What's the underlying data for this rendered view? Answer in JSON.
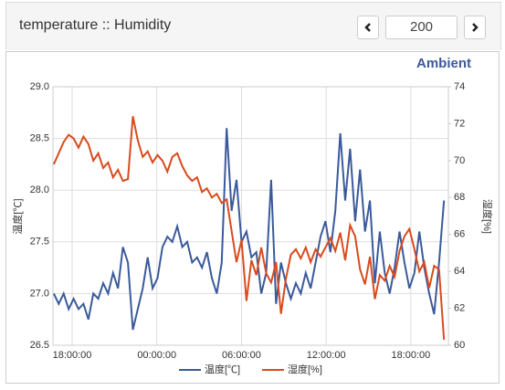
{
  "header": {
    "title": "temperature :: Humidity",
    "count": "200"
  },
  "chart_data": {
    "type": "line",
    "title": "Ambient",
    "ylabel": "温度[℃]",
    "y2label": "湿度[%]",
    "x": [
      16.7,
      17.05,
      17.4,
      17.75,
      18.1,
      18.45,
      18.8,
      19.15,
      19.5,
      19.85,
      20.2,
      20.55,
      20.9,
      21.25,
      21.6,
      21.95,
      22.3,
      22.65,
      23,
      23.35,
      23.7,
      24.05,
      24.4,
      24.75,
      25.1,
      25.45,
      25.8,
      26.15,
      26.5,
      26.85,
      27.2,
      27.55,
      27.9,
      28.25,
      28.6,
      28.95,
      29.3,
      29.65,
      30,
      30.35,
      30.7,
      31.05,
      31.4,
      31.75,
      32.1,
      32.45,
      32.8,
      33.15,
      33.5,
      33.85,
      34.2,
      34.55,
      34.9,
      35.25,
      35.6,
      35.95,
      36.3,
      36.65,
      37,
      37.35,
      37.7,
      38.05,
      38.4,
      38.75,
      39.1,
      39.45,
      39.8,
      40.15,
      40.5,
      40.85,
      41.2,
      41.55,
      41.9,
      42.25,
      42.6,
      42.95,
      43.3,
      43.65,
      44,
      44.35
    ],
    "series": [
      {
        "name": "温度[℃]",
        "color": "#3a5a9b",
        "axis": "y",
        "values": [
          27.0,
          26.9,
          27.0,
          26.85,
          26.95,
          26.85,
          26.9,
          26.75,
          27.0,
          26.95,
          27.1,
          27.0,
          27.2,
          27.05,
          27.45,
          27.3,
          26.65,
          26.85,
          27.05,
          27.35,
          27.05,
          27.15,
          27.45,
          27.55,
          27.5,
          27.65,
          27.45,
          27.5,
          27.3,
          27.35,
          27.25,
          27.4,
          27.15,
          27.0,
          27.3,
          28.6,
          27.8,
          28.1,
          27.5,
          27.6,
          27.35,
          27.4,
          27.0,
          27.2,
          28.1,
          26.9,
          27.3,
          27.1,
          26.95,
          27.1,
          27.0,
          27.2,
          27.05,
          27.3,
          27.55,
          27.7,
          27.4,
          27.8,
          28.55,
          27.9,
          28.4,
          27.7,
          28.2,
          27.6,
          27.9,
          27.1,
          27.6,
          27.2,
          27.0,
          27.25,
          27.6,
          27.3,
          27.05,
          27.2,
          27.6,
          27.25,
          27.0,
          26.8,
          27.3,
          27.9
        ]
      },
      {
        "name": "湿度[%]",
        "color": "#d94b1e",
        "axis": "y2",
        "values": [
          69.8,
          70.4,
          71.0,
          71.4,
          71.2,
          70.7,
          71.3,
          70.9,
          70.0,
          70.4,
          69.6,
          69.9,
          69.1,
          69.5,
          68.9,
          69.0,
          72.4,
          71.1,
          70.2,
          70.5,
          69.9,
          70.3,
          70.0,
          69.4,
          70.2,
          70.4,
          69.7,
          69.2,
          68.9,
          69.1,
          68.3,
          68.5,
          68.0,
          68.2,
          67.7,
          67.9,
          66.2,
          64.5,
          65.7,
          62.4,
          64.6,
          63.8,
          65.3,
          63.9,
          63.4,
          64.5,
          61.7,
          63.6,
          64.9,
          65.2,
          64.7,
          65.3,
          64.5,
          65.2,
          64.8,
          65.3,
          65.8,
          65.1,
          66.1,
          64.6,
          66.5,
          65.9,
          64.1,
          63.3,
          64.8,
          62.5,
          63.8,
          63.5,
          64.3,
          63.7,
          65.1,
          65.9,
          66.3,
          65.2,
          64.0,
          64.5,
          63.1,
          64.3,
          64.1,
          60.3
        ]
      }
    ],
    "xlim": [
      16.64,
      44.66
    ],
    "xticks": [
      {
        "value": 18,
        "label": "18:00:00"
      },
      {
        "value": 24,
        "label": "00:00:00"
      },
      {
        "value": 30,
        "label": "06:00:00"
      },
      {
        "value": 36,
        "label": "12:00:00"
      },
      {
        "value": 42,
        "label": "18:00:00"
      }
    ],
    "ylim": [
      26.5,
      29
    ],
    "yticks": [
      26.5,
      {
        "value": 27,
        "label": "27.0"
      },
      27.5,
      {
        "value": 28,
        "label": "28.0"
      },
      28.5,
      {
        "value": 29,
        "label": "29.0"
      }
    ],
    "y2lim": [
      60,
      74
    ],
    "y2ticks": [
      60,
      62,
      64,
      66,
      68,
      70,
      72,
      74
    ],
    "grid": true,
    "legend": "bottom"
  }
}
